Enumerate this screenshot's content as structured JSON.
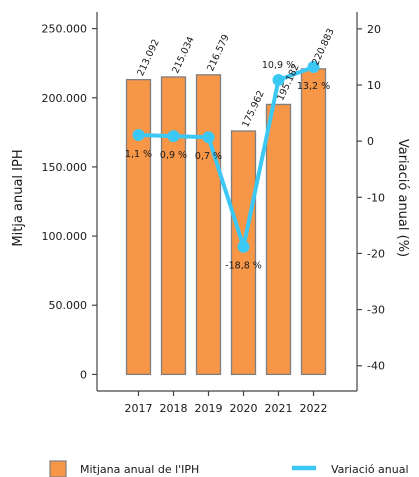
{
  "chart_data": {
    "type": "bar",
    "categories": [
      "2017",
      "2018",
      "2019",
      "2020",
      "2021",
      "2022"
    ],
    "series": [
      {
        "name": "Mitjana anual de l'IPH",
        "type": "bar",
        "axis": "left",
        "values": [
          213092,
          215034,
          216579,
          175962,
          195182,
          220883
        ],
        "labels": [
          "213.092",
          "215.034",
          "216.579",
          "175.962",
          "195.182",
          "220.883"
        ],
        "color": "#f79646",
        "border_color": "#7f7f7f"
      },
      {
        "name": "Variació anual",
        "type": "line",
        "axis": "right",
        "values": [
          1.1,
          0.9,
          0.7,
          -18.8,
          10.9,
          13.2
        ],
        "labels": [
          "1,1 %",
          "0,9 %",
          "0,7 %",
          "-18,8 %",
          "10,9 %",
          "13,2 %"
        ],
        "color": "#3cc8f4"
      }
    ],
    "ylabel_left": "Mitja anual IPH",
    "ylabel_right": "Variació anual (%)",
    "ylim_left": [
      -12000,
      262000
    ],
    "ylim_right": [
      -44.5,
      23
    ],
    "yticks_left": [
      {
        "value": 0,
        "label": "0"
      },
      {
        "value": 50000,
        "label": "50.000"
      },
      {
        "value": 100000,
        "label": "100.000"
      },
      {
        "value": 150000,
        "label": "150.000"
      },
      {
        "value": 200000,
        "label": "200.000"
      },
      {
        "value": 250000,
        "label": "250.000"
      }
    ],
    "yticks_right": [
      {
        "value": 20,
        "label": "20"
      },
      {
        "value": 10,
        "label": "10"
      },
      {
        "value": 0,
        "label": "0"
      },
      {
        "value": -10,
        "label": "-10"
      },
      {
        "value": -20,
        "label": "-20"
      },
      {
        "value": -30,
        "label": "-30"
      },
      {
        "value": -40,
        "label": "-40"
      }
    ],
    "grid": false,
    "legend": "bottom"
  }
}
